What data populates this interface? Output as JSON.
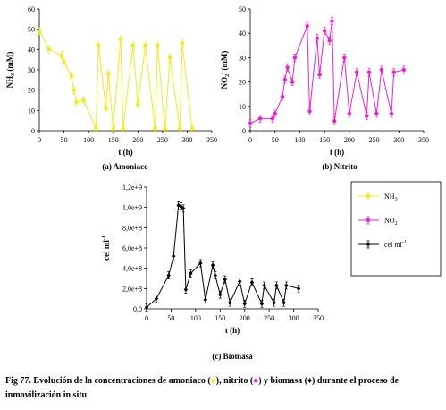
{
  "caption": {
    "part1": "Fig 77. Evolución de la concentraciones de amoniaco (",
    "part2": "), nitrito (",
    "part3": ") y biomasa (",
    "part4": ") durante el proceso de inmovilización in situ",
    "marker1": "●",
    "marker2": "●",
    "marker3": "♦"
  },
  "chart_data": [
    {
      "id": "a",
      "type": "line",
      "subtitle": "(a) Amoniaco",
      "xlabel": "t (h)",
      "ylabel": "NH3 (mM)",
      "xlim": [
        0,
        350
      ],
      "ylim": [
        0,
        60
      ],
      "xticks": [
        "0",
        "50",
        "100",
        "150",
        "200",
        "250",
        "300",
        "350"
      ],
      "yticks": [
        "0",
        "10",
        "20",
        "30",
        "40",
        "50",
        "60"
      ],
      "series": [
        {
          "name": "NH3",
          "color": "#f5e81c",
          "marker": "square",
          "x": [
            0,
            20,
            45,
            50,
            65,
            70,
            75,
            90,
            115,
            120,
            135,
            140,
            150,
            165,
            170,
            190,
            200,
            215,
            235,
            240,
            255,
            265,
            285,
            290,
            310
          ],
          "y": [
            49,
            40,
            37,
            34,
            27,
            20,
            14,
            15,
            1,
            42,
            11,
            28,
            1,
            45,
            1,
            42,
            13,
            42,
            1,
            42,
            1,
            36,
            1,
            43,
            1
          ]
        }
      ]
    },
    {
      "id": "b",
      "type": "line",
      "subtitle": "(b) Nitrito",
      "xlabel": "t (h)",
      "ylabel": "NO2- (mM)",
      "xlim": [
        0,
        350
      ],
      "ylim": [
        0,
        50
      ],
      "xticks": [
        "0",
        "50",
        "100",
        "150",
        "200",
        "250",
        "300",
        "350"
      ],
      "yticks": [
        "0",
        "10",
        "20",
        "30",
        "40",
        "50"
      ],
      "series": [
        {
          "name": "NO2-",
          "color": "#ee1fd0",
          "marker": "circle",
          "x": [
            0,
            20,
            45,
            50,
            65,
            70,
            75,
            85,
            90,
            115,
            120,
            135,
            140,
            150,
            160,
            165,
            170,
            190,
            200,
            215,
            235,
            240,
            255,
            265,
            285,
            290,
            310
          ],
          "y": [
            3,
            5,
            5,
            7,
            14,
            21,
            26,
            20,
            30,
            43,
            8,
            38,
            23,
            41,
            37,
            45,
            4,
            30,
            7,
            24,
            6,
            24,
            7,
            25,
            7,
            24,
            25
          ]
        }
      ]
    },
    {
      "id": "c",
      "type": "line",
      "subtitle": "(c) Biomasa",
      "xlabel": "t (h)",
      "ylabel": "cel ml-1",
      "xlim": [
        0,
        350
      ],
      "ylim": [
        0,
        1200000000.0
      ],
      "xticks": [
        "0",
        "50",
        "100",
        "150",
        "200",
        "250",
        "300",
        "350"
      ],
      "yticks": [
        "0,0",
        "2,0e+8",
        "4,0e+8",
        "6,0e+8",
        "8,0e+8",
        "1,0e+9",
        "1,2e+9"
      ],
      "legend": {
        "position": "right",
        "entries": [
          "NH3",
          "NO2-",
          "cel ml-1"
        ]
      },
      "series": [
        {
          "name": "cel ml-1",
          "color": "#000000",
          "marker": "diamond",
          "x": [
            0,
            20,
            45,
            55,
            65,
            70,
            75,
            80,
            90,
            110,
            120,
            135,
            140,
            150,
            160,
            170,
            190,
            200,
            215,
            235,
            240,
            260,
            265,
            280,
            285,
            310
          ],
          "y": [
            15000000.0,
            100000000.0,
            330000000.0,
            520000000.0,
            1020000000.0,
            1010000000.0,
            990000000.0,
            190000000.0,
            350000000.0,
            450000000.0,
            90000000.0,
            430000000.0,
            330000000.0,
            140000000.0,
            290000000.0,
            60000000.0,
            270000000.0,
            50000000.0,
            260000000.0,
            50000000.0,
            230000000.0,
            60000000.0,
            230000000.0,
            60000000.0,
            230000000.0,
            200000000.0
          ]
        }
      ]
    }
  ]
}
